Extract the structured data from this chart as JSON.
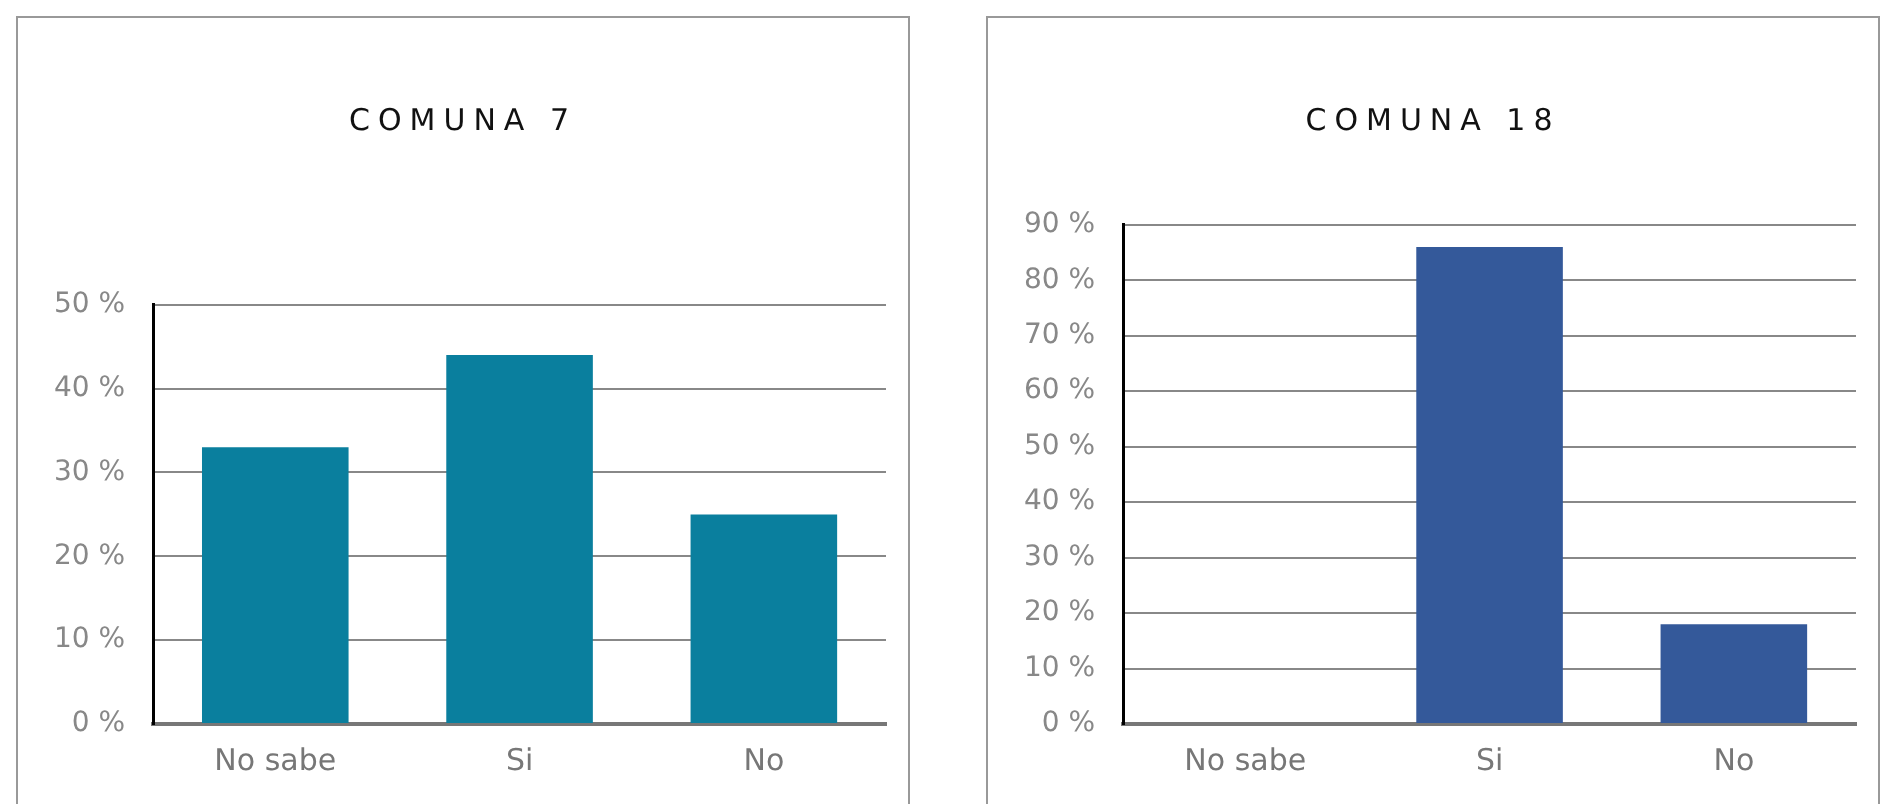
{
  "chart_data": [
    {
      "type": "bar",
      "title": "COMUNA 7",
      "categories": [
        "No sabe",
        "Si",
        "No"
      ],
      "values": [
        33,
        44,
        25
      ],
      "color": "#0a7f9e",
      "ylim": [
        0,
        50
      ],
      "yticks": [
        {
          "value": 0,
          "label": "0 %"
        },
        {
          "value": 10,
          "label": "10 %"
        },
        {
          "value": 20,
          "label": "20 %"
        },
        {
          "value": 30,
          "label": "30 %"
        },
        {
          "value": 40,
          "label": "40 %"
        },
        {
          "value": 50,
          "label": "50 %"
        }
      ],
      "grid": "y"
    },
    {
      "type": "bar",
      "title": "COMUNA 18",
      "categories": [
        "No sabe",
        "Si",
        "No"
      ],
      "values": [
        0,
        86,
        18
      ],
      "color": "#34599a",
      "ylim": [
        0,
        90
      ],
      "yticks": [
        {
          "value": 0,
          "label": "0 %"
        },
        {
          "value": 10,
          "label": "10 %"
        },
        {
          "value": 20,
          "label": "20 %"
        },
        {
          "value": 30,
          "label": "30 %"
        },
        {
          "value": 40,
          "label": "40 %"
        },
        {
          "value": 50,
          "label": "50 %"
        },
        {
          "value": 60,
          "label": "60 %"
        },
        {
          "value": 70,
          "label": "70 %"
        },
        {
          "value": 80,
          "label": "80 %"
        },
        {
          "value": 90,
          "label": "90 %"
        }
      ],
      "grid": "y"
    }
  ]
}
